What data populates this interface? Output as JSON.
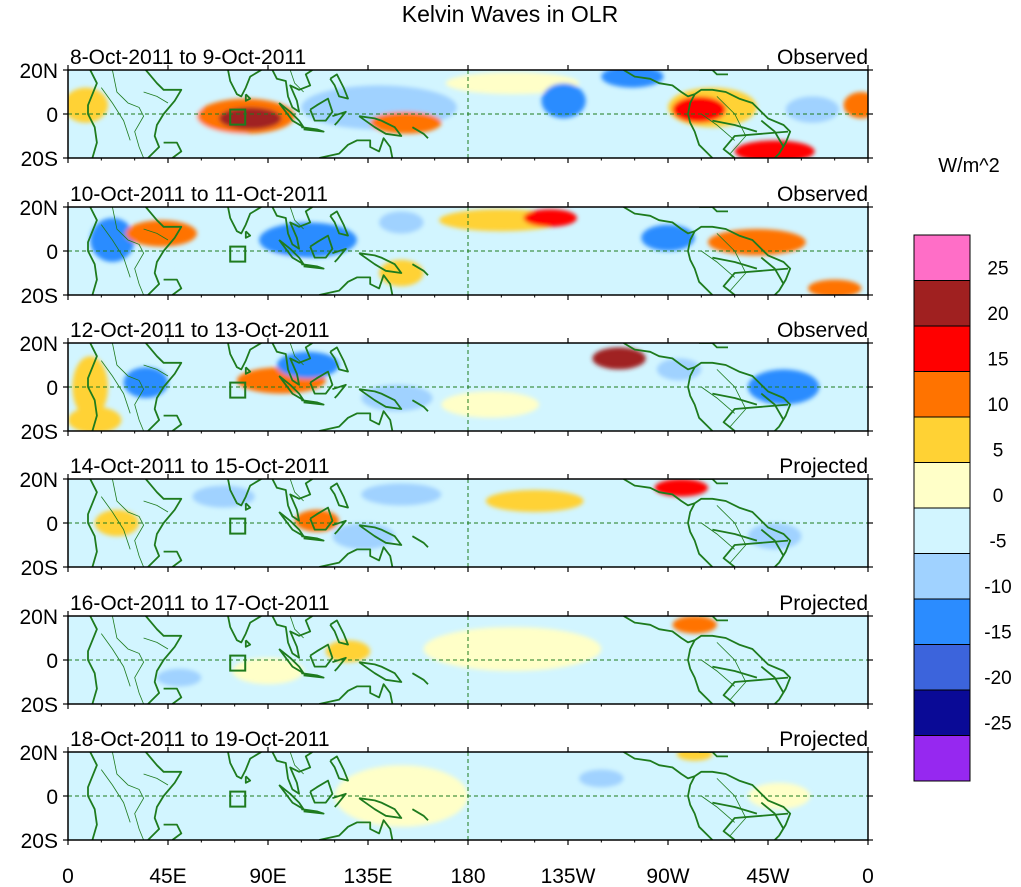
{
  "title": "Kelvin Waves in OLR",
  "colorbar": {
    "units": "W/m^2",
    "colors": [
      "#ff6ec7",
      "#a02020",
      "#ff0000",
      "#ff7300",
      "#ffd234",
      "#ffffc8",
      "#d2f5ff",
      "#a0d2ff",
      "#2b8cff",
      "#3c64dc",
      "#0a0a96",
      "#9628f0"
    ],
    "labels": [
      "25",
      "20",
      "15",
      "10",
      "5",
      "0",
      "-5",
      "-10",
      "-15",
      "-20",
      "-25"
    ]
  },
  "lat_labels": [
    "20N",
    "0",
    "20S"
  ],
  "lon_labels": [
    "0",
    "45E",
    "90E",
    "135E",
    "180",
    "135W",
    "90W",
    "45W",
    "0"
  ],
  "panels": [
    {
      "date_range": "8-Oct-2011 to 9-Oct-2011",
      "status": "Observed"
    },
    {
      "date_range": "10-Oct-2011 to 11-Oct-2011",
      "status": "Observed"
    },
    {
      "date_range": "12-Oct-2011 to 13-Oct-2011",
      "status": "Observed"
    },
    {
      "date_range": "14-Oct-2011 to 15-Oct-2011",
      "status": "Projected"
    },
    {
      "date_range": "16-Oct-2011 to 17-Oct-2011",
      "status": "Projected"
    },
    {
      "date_range": "18-Oct-2011 to 19-Oct-2011",
      "status": "Projected"
    }
  ],
  "map_data": {
    "lon_range": [
      0,
      360
    ],
    "lat_range": [
      -20,
      20
    ],
    "anomalies": [
      [
        {
          "lon": 82,
          "lat": -2,
          "rlon": 14,
          "rlat": 5,
          "v": 22
        },
        {
          "lon": 80,
          "lat": -1,
          "rlon": 22,
          "rlat": 8,
          "v": 12
        },
        {
          "lon": 152,
          "lat": -4,
          "rlon": 16,
          "rlat": 5,
          "v": 12
        },
        {
          "lon": 284,
          "lat": 2,
          "rlon": 12,
          "rlat": 6,
          "v": 18
        },
        {
          "lon": 290,
          "lat": 3,
          "rlon": 20,
          "rlat": 9,
          "v": 9
        },
        {
          "lon": 318,
          "lat": -17,
          "rlon": 18,
          "rlat": 5,
          "v": 16
        },
        {
          "lon": 8,
          "lat": 4,
          "rlon": 10,
          "rlat": 8,
          "v": 8
        },
        {
          "lon": 357,
          "lat": 4,
          "rlon": 8,
          "rlat": 6,
          "v": 14
        },
        {
          "lon": 140,
          "lat": 3,
          "rlon": 35,
          "rlat": 10,
          "v": -8
        },
        {
          "lon": 223,
          "lat": 6,
          "rlon": 10,
          "rlat": 8,
          "v": -12
        },
        {
          "lon": 254,
          "lat": 17,
          "rlon": 14,
          "rlat": 5,
          "v": -14
        },
        {
          "lon": 335,
          "lat": 2,
          "rlon": 12,
          "rlat": 6,
          "v": -9
        },
        {
          "lon": 55,
          "lat": -5,
          "rlon": 30,
          "rlat": 8,
          "v": -4
        },
        {
          "lon": 200,
          "lat": 14,
          "rlon": 30,
          "rlat": 5,
          "v": 4
        }
      ],
      [
        {
          "lon": 42,
          "lat": 8,
          "rlon": 16,
          "rlat": 6,
          "v": 12
        },
        {
          "lon": 195,
          "lat": 14,
          "rlon": 28,
          "rlat": 5,
          "v": 9
        },
        {
          "lon": 217,
          "lat": 15,
          "rlon": 12,
          "rlat": 4,
          "v": 16
        },
        {
          "lon": 310,
          "lat": 4,
          "rlon": 22,
          "rlat": 6,
          "v": 12
        },
        {
          "lon": 345,
          "lat": -17,
          "rlon": 12,
          "rlat": 4,
          "v": 12
        },
        {
          "lon": 20,
          "lat": 5,
          "rlon": 10,
          "rlat": 10,
          "v": -14
        },
        {
          "lon": 108,
          "lat": 5,
          "rlon": 22,
          "rlat": 8,
          "v": -12
        },
        {
          "lon": 150,
          "lat": 13,
          "rlon": 10,
          "rlat": 5,
          "v": -9
        },
        {
          "lon": 270,
          "lat": 6,
          "rlon": 12,
          "rlat": 6,
          "v": -12
        },
        {
          "lon": 150,
          "lat": -10,
          "rlon": 10,
          "rlat": 6,
          "v": 6
        },
        {
          "lon": 80,
          "lat": -8,
          "rlon": 30,
          "rlat": 7,
          "v": -4
        }
      ],
      [
        {
          "lon": 96,
          "lat": 3,
          "rlon": 20,
          "rlat": 6,
          "v": 13
        },
        {
          "lon": 248,
          "lat": 13,
          "rlon": 12,
          "rlat": 5,
          "v": 20
        },
        {
          "lon": 10,
          "lat": 0,
          "rlon": 8,
          "rlat": 14,
          "v": 8
        },
        {
          "lon": 12,
          "lat": -15,
          "rlon": 12,
          "rlat": 6,
          "v": 9
        },
        {
          "lon": 35,
          "lat": 2,
          "rlon": 10,
          "rlat": 7,
          "v": -14
        },
        {
          "lon": 108,
          "lat": 10,
          "rlon": 14,
          "rlat": 6,
          "v": -10
        },
        {
          "lon": 148,
          "lat": -5,
          "rlon": 16,
          "rlat": 6,
          "v": -9
        },
        {
          "lon": 322,
          "lat": 0,
          "rlon": 16,
          "rlat": 8,
          "v": -10
        },
        {
          "lon": 275,
          "lat": 8,
          "rlon": 10,
          "rlat": 5,
          "v": -8
        },
        {
          "lon": 190,
          "lat": -8,
          "rlon": 22,
          "rlat": 6,
          "v": 4
        }
      ],
      [
        {
          "lon": 276,
          "lat": 16,
          "rlon": 12,
          "rlat": 4,
          "v": 18
        },
        {
          "lon": 112,
          "lat": 1,
          "rlon": 10,
          "rlat": 5,
          "v": 11
        },
        {
          "lon": 210,
          "lat": 10,
          "rlon": 22,
          "rlat": 5,
          "v": 6
        },
        {
          "lon": 22,
          "lat": 0,
          "rlon": 10,
          "rlat": 6,
          "v": 6
        },
        {
          "lon": 133,
          "lat": -6,
          "rlon": 14,
          "rlat": 6,
          "v": -9
        },
        {
          "lon": 150,
          "lat": 13,
          "rlon": 18,
          "rlat": 5,
          "v": -7
        },
        {
          "lon": 318,
          "lat": -6,
          "rlon": 12,
          "rlat": 6,
          "v": -8
        },
        {
          "lon": 70,
          "lat": 12,
          "rlon": 14,
          "rlat": 5,
          "v": -5
        }
      ],
      [
        {
          "lon": 282,
          "lat": 16,
          "rlon": 10,
          "rlat": 4,
          "v": 13
        },
        {
          "lon": 126,
          "lat": 4,
          "rlon": 10,
          "rlat": 5,
          "v": 7
        },
        {
          "lon": 90,
          "lat": -5,
          "rlon": 16,
          "rlat": 6,
          "v": 4
        },
        {
          "lon": 50,
          "lat": -8,
          "rlon": 10,
          "rlat": 4,
          "v": -5
        },
        {
          "lon": 200,
          "lat": 5,
          "rlon": 40,
          "rlat": 10,
          "v": 3
        },
        {
          "lon": 300,
          "lat": -5,
          "rlon": 18,
          "rlat": 6,
          "v": -4
        }
      ],
      [
        {
          "lon": 282,
          "lat": 19,
          "rlon": 8,
          "rlat": 3,
          "v": 7
        },
        {
          "lon": 150,
          "lat": 0,
          "rlon": 30,
          "rlat": 14,
          "v": 3
        },
        {
          "lon": 240,
          "lat": 8,
          "rlon": 10,
          "rlat": 4,
          "v": -5
        },
        {
          "lon": 60,
          "lat": -5,
          "rlon": 20,
          "rlat": 8,
          "v": -3
        },
        {
          "lon": 320,
          "lat": 0,
          "rlon": 14,
          "rlat": 6,
          "v": 3
        }
      ]
    ]
  }
}
